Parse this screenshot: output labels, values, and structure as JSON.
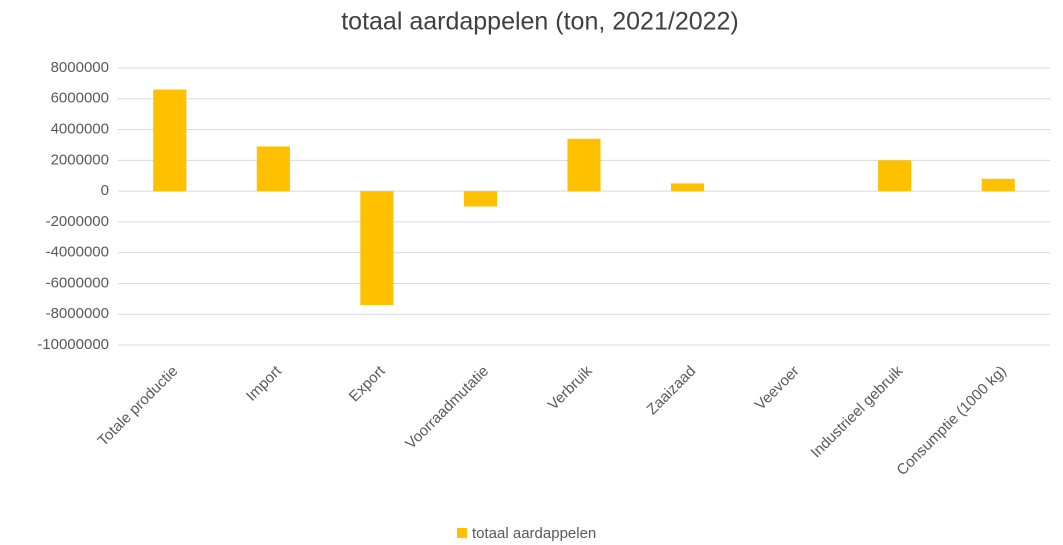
{
  "chart_data": {
    "type": "bar",
    "title": "totaal aardappelen (ton, 2021/2022)",
    "categories": [
      "Totale productie",
      "Import",
      "Export",
      "Voorraadmutatie",
      "Verbruik",
      "Zaaizaad",
      "Veevoer",
      "Industrieel gebruik",
      "Consumptie (1000 kg)"
    ],
    "series": [
      {
        "name": "totaal aardappelen",
        "color": "#ffc000",
        "values": [
          6600000,
          2900000,
          -7400000,
          -1000000,
          3400000,
          500000,
          0,
          2000000,
          800000
        ]
      }
    ],
    "ylim": [
      -10000000,
      8000000
    ],
    "yticks": [
      -10000000,
      -8000000,
      -6000000,
      -4000000,
      -2000000,
      0,
      2000000,
      4000000,
      6000000,
      8000000
    ],
    "grid": true,
    "legend": "bottom"
  }
}
